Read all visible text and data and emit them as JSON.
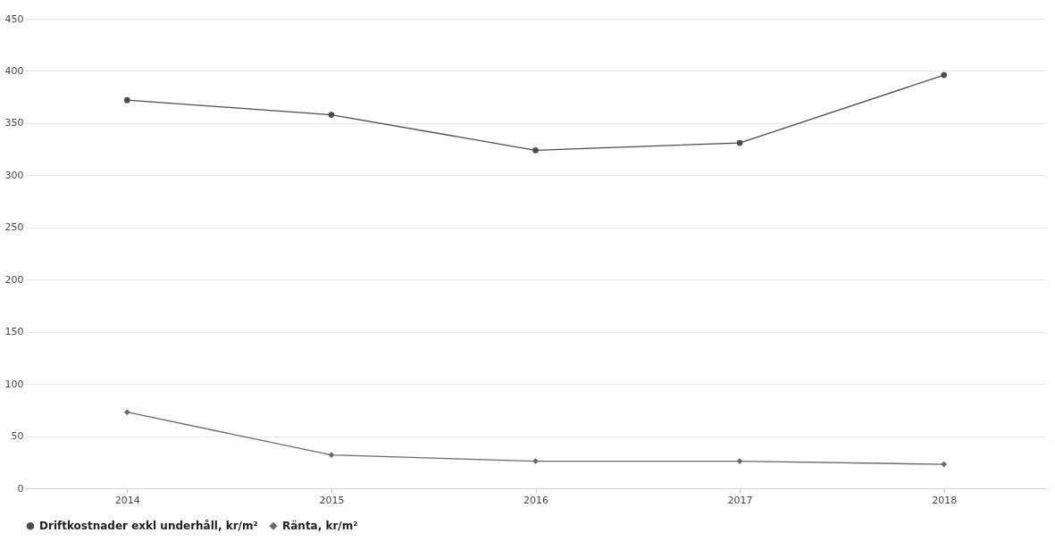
{
  "chart_data": {
    "type": "line",
    "categories": [
      "2014",
      "2015",
      "2016",
      "2017",
      "2018"
    ],
    "series": [
      {
        "name": "Driftkostnader exkl underhåll, kr/m²",
        "color": "#4d4d4d",
        "values": [
          372,
          358,
          324,
          331,
          396
        ],
        "marker": "circle"
      },
      {
        "name": "Ränta, kr/m²",
        "color": "#6a6a6a",
        "values": [
          73,
          32,
          26,
          26,
          23
        ],
        "marker": "diamond"
      }
    ],
    "ylim": [
      0,
      450
    ],
    "yticks": [
      0,
      50,
      100,
      150,
      200,
      250,
      300,
      350,
      400,
      450
    ],
    "grid": "y",
    "legend": "bottom",
    "line_style": "solid"
  }
}
